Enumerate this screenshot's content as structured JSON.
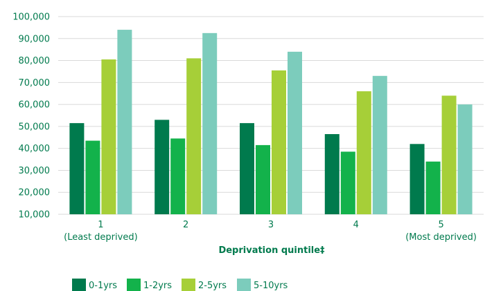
{
  "chart_data": {
    "type": "bar",
    "categories": [
      "1",
      "2",
      "3",
      "4",
      "5"
    ],
    "category_sublabels": [
      "(Least deprived)",
      "",
      "",
      "",
      "(Most deprived)"
    ],
    "series": [
      {
        "name": "0-1yrs",
        "color": "#007a4d",
        "values": [
          51500,
          53000,
          51500,
          46500,
          42000
        ]
      },
      {
        "name": "1-2yrs",
        "color": "#13b24b",
        "values": [
          43500,
          44500,
          41500,
          38500,
          34000
        ]
      },
      {
        "name": "2-5yrs",
        "color": "#a6cf38",
        "values": [
          80500,
          81000,
          75500,
          66000,
          64000
        ]
      },
      {
        "name": "5-10yrs",
        "color": "#7cccbc",
        "values": [
          94000,
          92500,
          84000,
          73000,
          60000
        ]
      }
    ],
    "yticks": [
      "10,000",
      "20,000",
      "30,000",
      "40,000",
      "50,000",
      "60,000",
      "70,000",
      "80,000",
      "90,000",
      "100,000"
    ],
    "ylim": [
      10000,
      100000
    ],
    "xlabel": "Deprivation quintile‡",
    "ylabel": "",
    "title": "",
    "grid": true,
    "legend_position": "bottom-left"
  }
}
